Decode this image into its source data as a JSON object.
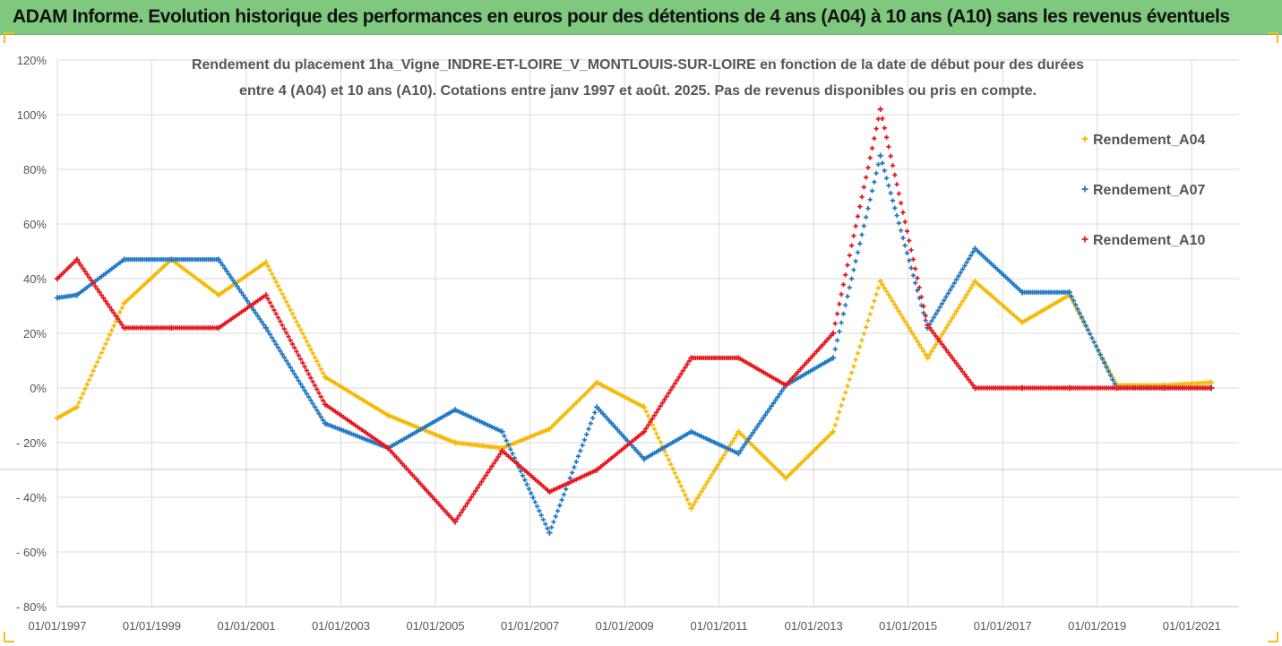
{
  "header": {
    "banner_title": "ADAM Informe. Evolution historique des performances en euros pour des détentions de 4 ans (A04) à 10 ans (A10) sans les revenus éventuels"
  },
  "chart_data": {
    "type": "scatter",
    "title_lines": [
      "Rendement du placement 1ha_Vigne_INDRE-ET-LOIRE_V_MONTLOUIS-SUR-LOIRE en fonction de la date de début pour des durées",
      "entre 4 (A04) et 10 ans (A10). Cotations entre janv 1997 et août. 2025. Pas de revenus disponibles ou pris en compte."
    ],
    "xlabel": "",
    "ylabel": "",
    "x_ticks": [
      "01/01/1997",
      "01/01/1999",
      "01/01/2001",
      "01/01/2003",
      "01/01/2005",
      "01/01/2007",
      "01/01/2009",
      "01/01/2011",
      "01/01/2013",
      "01/01/2015",
      "01/01/2017",
      "01/01/2019",
      "01/01/2021"
    ],
    "y_ticks": [
      "120%",
      "100%",
      "80%",
      "60%",
      "40%",
      "20%",
      "0%",
      "- 20%",
      "- 40%",
      "- 60%",
      "- 80%"
    ],
    "xlim": [
      "1997-01-01",
      "2022-01-01"
    ],
    "ylim": [
      -80,
      120
    ],
    "grid": true,
    "legend_position": "right",
    "marker": "+",
    "series": [
      {
        "name": "Rendement_A04",
        "color": "#f5b800",
        "x": [
          "1997-01-01",
          "1997-06-01",
          "1998-06-01",
          "1999-06-01",
          "2000-06-01",
          "2001-06-01",
          "2002-09-01",
          "2004-01-01",
          "2005-06-01",
          "2006-06-01",
          "2007-06-01",
          "2008-06-01",
          "2009-06-01",
          "2010-06-01",
          "2011-06-01",
          "2012-06-01",
          "2013-06-01",
          "2014-06-01",
          "2015-06-01",
          "2016-06-01",
          "2017-06-01",
          "2018-06-01",
          "2019-06-01",
          "2020-06-01",
          "2021-06-01"
        ],
        "values": [
          -11,
          -7,
          31,
          47,
          34,
          46,
          4,
          -10,
          -20,
          -22,
          -15,
          2,
          -7,
          -44,
          -16,
          -33,
          -16,
          39,
          11,
          39,
          24,
          34,
          1,
          1,
          2
        ]
      },
      {
        "name": "Rendement_A07",
        "color": "#1f77c4",
        "x": [
          "1997-01-01",
          "1997-06-01",
          "1998-06-01",
          "1999-06-01",
          "2000-06-01",
          "2001-06-01",
          "2002-09-01",
          "2004-01-01",
          "2005-06-01",
          "2006-06-01",
          "2007-06-01",
          "2008-06-01",
          "2009-06-01",
          "2010-06-01",
          "2011-06-01",
          "2012-06-01",
          "2013-06-01",
          "2014-06-01",
          "2015-06-01",
          "2016-06-01",
          "2017-06-01",
          "2018-06-01",
          "2019-06-01",
          "2020-06-01",
          "2021-06-01"
        ],
        "values": [
          33,
          34,
          47,
          47,
          47,
          22,
          -13,
          -22,
          -8,
          -16,
          -53,
          -7,
          -26,
          -16,
          -24,
          1,
          11,
          85,
          22,
          51,
          35,
          35,
          0,
          0,
          0
        ]
      },
      {
        "name": "Rendement_A10",
        "color": "#e8141c",
        "x": [
          "1997-01-01",
          "1997-06-01",
          "1998-06-01",
          "1999-06-01",
          "2000-06-01",
          "2001-06-01",
          "2002-09-01",
          "2004-01-01",
          "2005-06-01",
          "2006-06-01",
          "2007-06-01",
          "2008-06-01",
          "2009-06-01",
          "2010-06-01",
          "2011-06-01",
          "2012-06-01",
          "2013-06-01",
          "2014-06-01",
          "2015-06-01",
          "2016-06-01",
          "2017-06-01",
          "2018-06-01",
          "2019-06-01",
          "2020-06-01",
          "2021-06-01"
        ],
        "values": [
          40,
          47,
          22,
          22,
          22,
          34,
          -6,
          -22,
          -49,
          -23,
          -38,
          -30,
          -16,
          11,
          11,
          1,
          20,
          102,
          23,
          0,
          0,
          0,
          0,
          0,
          0
        ]
      }
    ]
  }
}
